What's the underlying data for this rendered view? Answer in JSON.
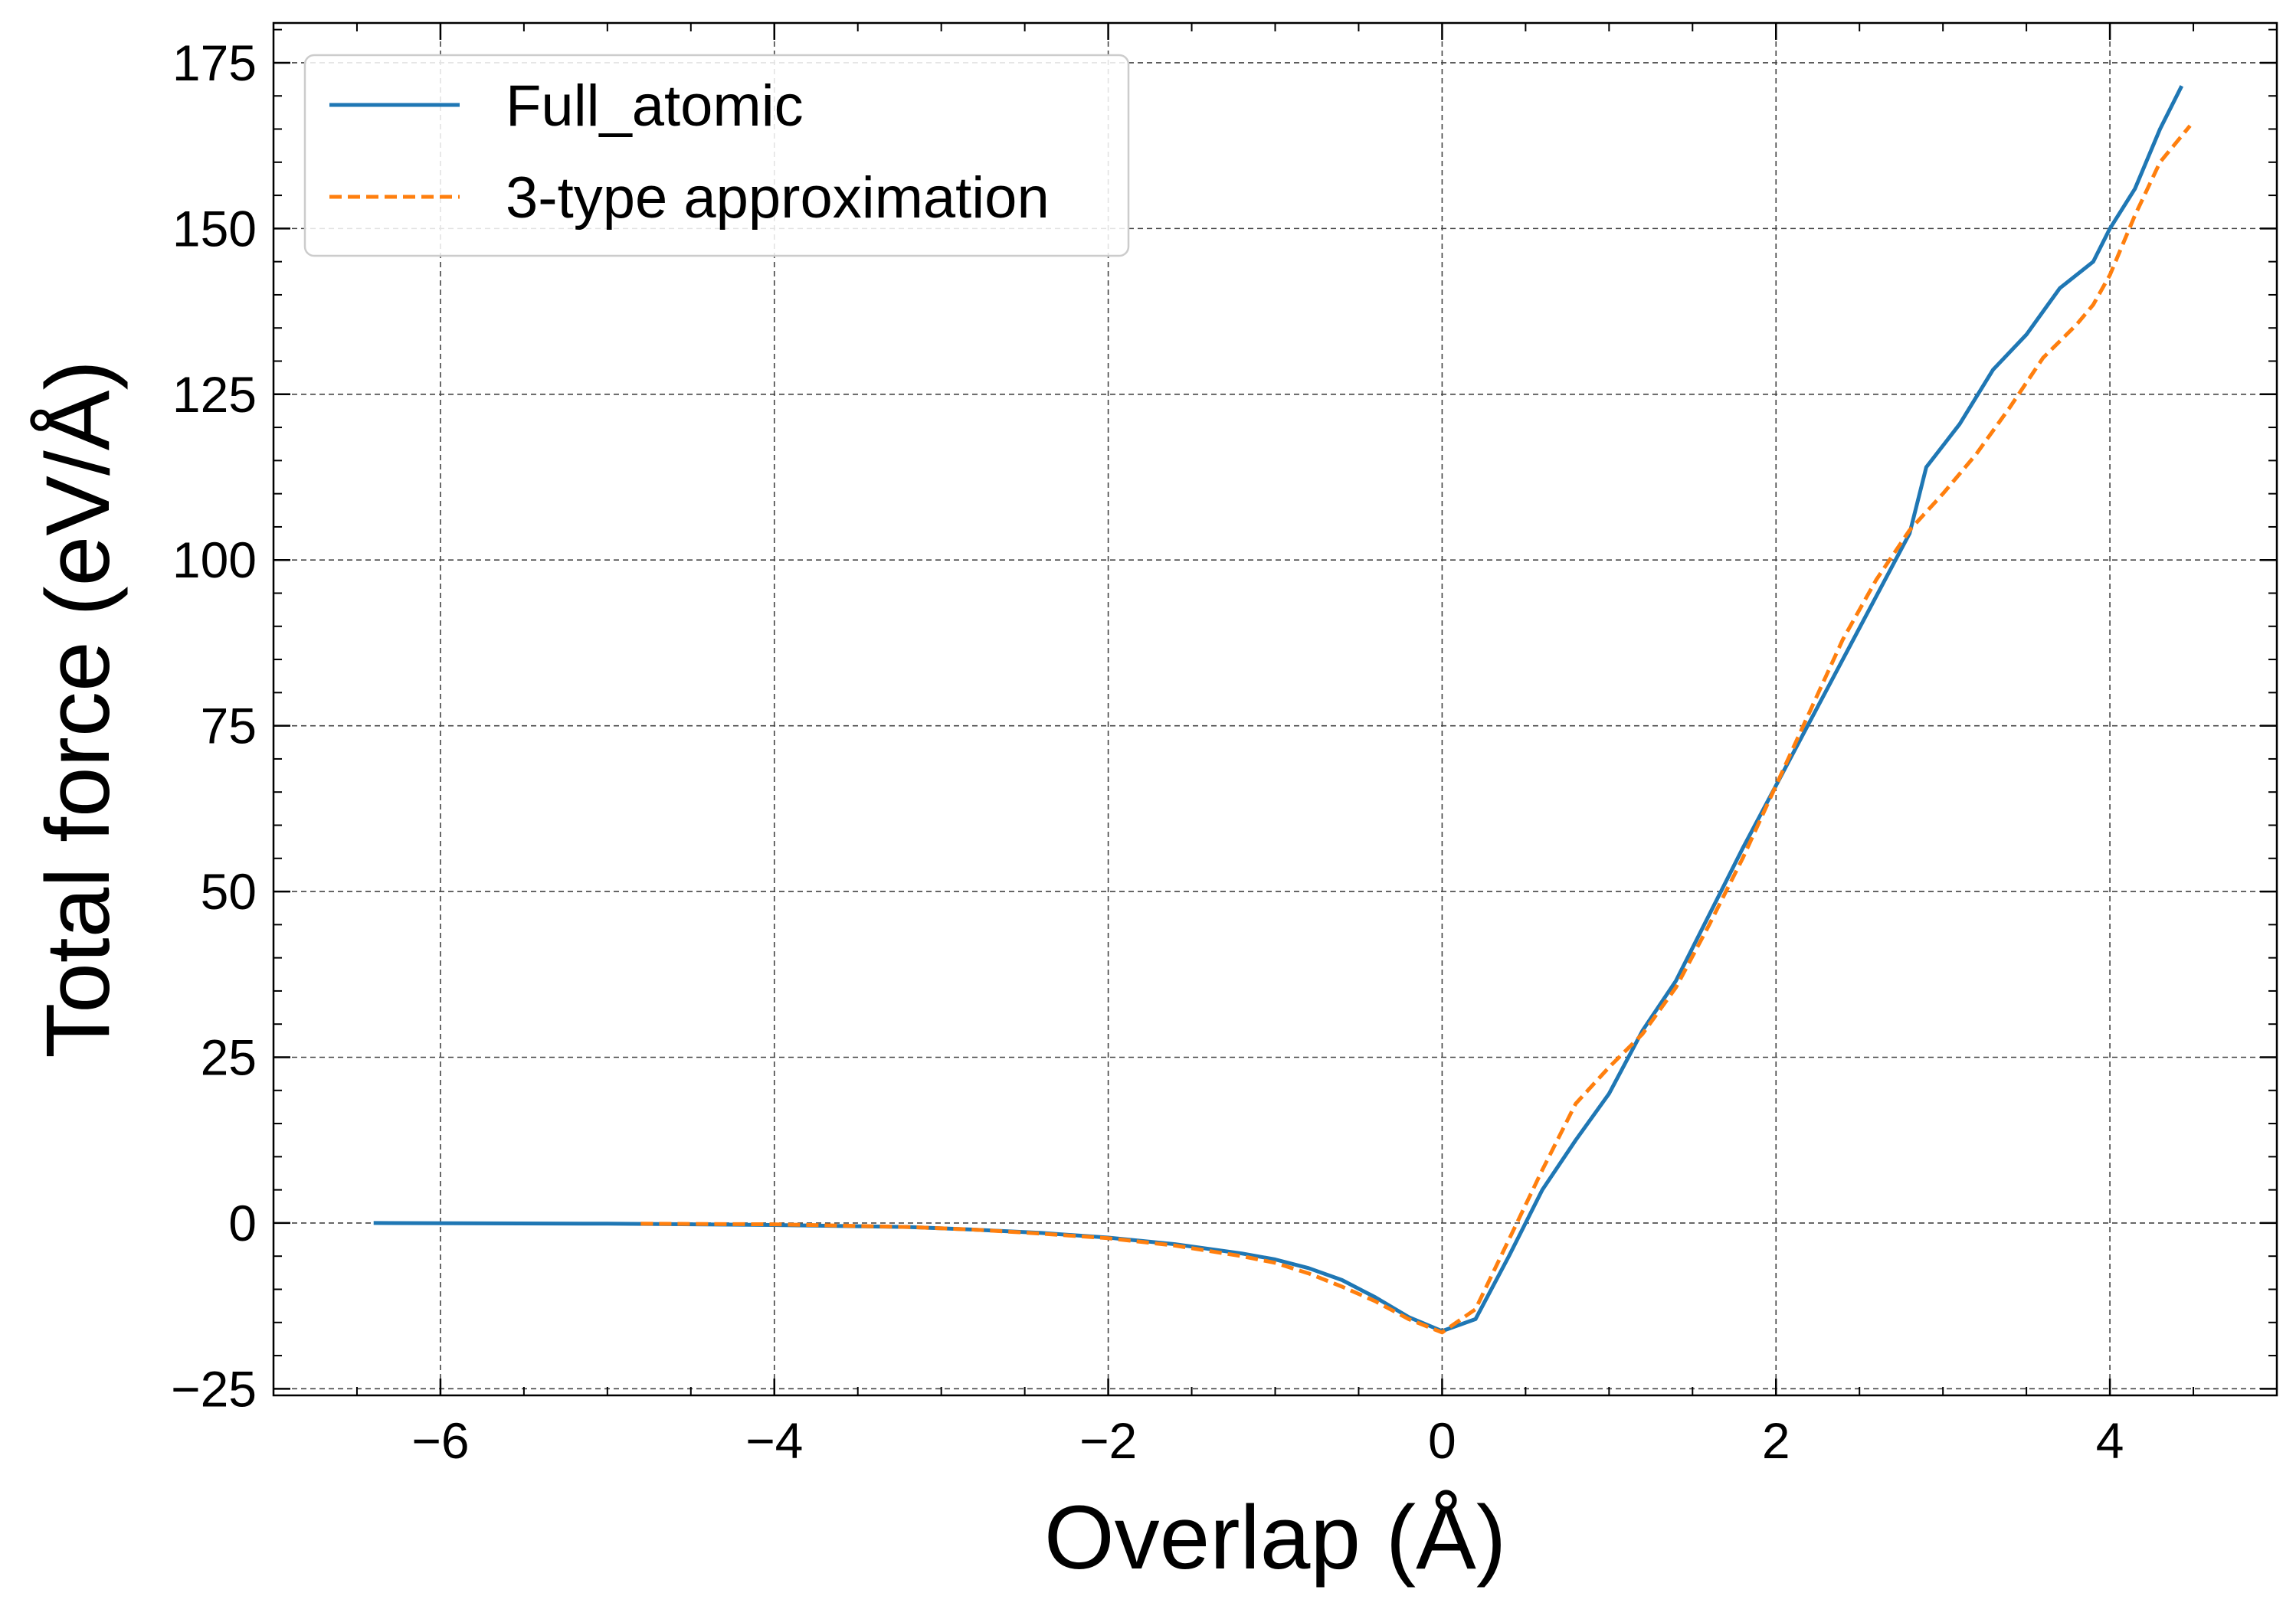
{
  "chart_data": {
    "type": "line",
    "xlabel": "Overlap (Å)",
    "ylabel": "Total force (eV/Å)",
    "xlim": [
      -7,
      5
    ],
    "ylim": [
      -26,
      181
    ],
    "x_ticks": [
      -6,
      -4,
      -2,
      0,
      2,
      4
    ],
    "x_tick_labels": [
      "−6",
      "−4",
      "−2",
      "0",
      "2",
      "4"
    ],
    "y_ticks": [
      -25,
      0,
      25,
      50,
      75,
      100,
      125,
      150,
      175
    ],
    "y_tick_labels": [
      "−25",
      "0",
      "25",
      "50",
      "75",
      "100",
      "125",
      "150",
      "175"
    ],
    "grid": true,
    "legend": "top-left",
    "series": [
      {
        "name": "Full_atomic",
        "color": "#1f77b4",
        "style": "solid",
        "points": [
          [
            -6.4,
            0.0
          ],
          [
            -5.0,
            -0.1
          ],
          [
            -4.0,
            -0.3
          ],
          [
            -3.2,
            -0.6
          ],
          [
            -2.8,
            -1.0
          ],
          [
            -2.4,
            -1.5
          ],
          [
            -2.0,
            -2.2
          ],
          [
            -1.6,
            -3.2
          ],
          [
            -1.2,
            -4.6
          ],
          [
            -1.0,
            -5.5
          ],
          [
            -0.8,
            -6.8
          ],
          [
            -0.6,
            -8.6
          ],
          [
            -0.4,
            -11.2
          ],
          [
            -0.2,
            -14.2
          ],
          [
            0.0,
            -16.3
          ],
          [
            0.2,
            -14.5
          ],
          [
            0.4,
            -5.0
          ],
          [
            0.6,
            5.0
          ],
          [
            0.8,
            12.5
          ],
          [
            1.0,
            19.5
          ],
          [
            1.2,
            29.0
          ],
          [
            1.4,
            36.5
          ],
          [
            1.6,
            46.5
          ],
          [
            1.8,
            56.5
          ],
          [
            2.0,
            66.0
          ],
          [
            2.2,
            75.5
          ],
          [
            2.4,
            85.0
          ],
          [
            2.6,
            94.5
          ],
          [
            2.8,
            104.0
          ],
          [
            2.9,
            114.0
          ],
          [
            3.1,
            120.5
          ],
          [
            3.3,
            128.7
          ],
          [
            3.5,
            134.0
          ],
          [
            3.7,
            141.0
          ],
          [
            3.9,
            145.0
          ],
          [
            4.0,
            150.0
          ],
          [
            4.15,
            156.0
          ],
          [
            4.3,
            165.0
          ],
          [
            4.43,
            171.5
          ]
        ]
      },
      {
        "name": "3-type approximation",
        "color": "#ff7f0e",
        "style": "dashed",
        "points": [
          [
            -4.8,
            -0.1
          ],
          [
            -4.0,
            -0.2
          ],
          [
            -3.2,
            -0.6
          ],
          [
            -2.8,
            -1.0
          ],
          [
            -2.4,
            -1.6
          ],
          [
            -2.0,
            -2.3
          ],
          [
            -1.6,
            -3.4
          ],
          [
            -1.2,
            -5.0
          ],
          [
            -1.0,
            -6.0
          ],
          [
            -0.8,
            -7.6
          ],
          [
            -0.6,
            -9.6
          ],
          [
            -0.4,
            -11.8
          ],
          [
            -0.2,
            -14.5
          ],
          [
            0.0,
            -16.5
          ],
          [
            0.2,
            -13.0
          ],
          [
            0.4,
            -2.5
          ],
          [
            0.6,
            8.0
          ],
          [
            0.8,
            18.0
          ],
          [
            1.0,
            23.5
          ],
          [
            1.2,
            28.5
          ],
          [
            1.4,
            35.5
          ],
          [
            1.6,
            45.0
          ],
          [
            1.8,
            55.0
          ],
          [
            2.0,
            66.0
          ],
          [
            2.2,
            77.0
          ],
          [
            2.4,
            88.0
          ],
          [
            2.6,
            97.0
          ],
          [
            2.8,
            104.5
          ],
          [
            3.0,
            110.0
          ],
          [
            3.2,
            116.0
          ],
          [
            3.4,
            123.0
          ],
          [
            3.6,
            130.5
          ],
          [
            3.8,
            135.5
          ],
          [
            3.9,
            138.5
          ],
          [
            4.0,
            143.0
          ],
          [
            4.15,
            152.0
          ],
          [
            4.3,
            160.0
          ],
          [
            4.48,
            165.5
          ]
        ]
      }
    ]
  }
}
